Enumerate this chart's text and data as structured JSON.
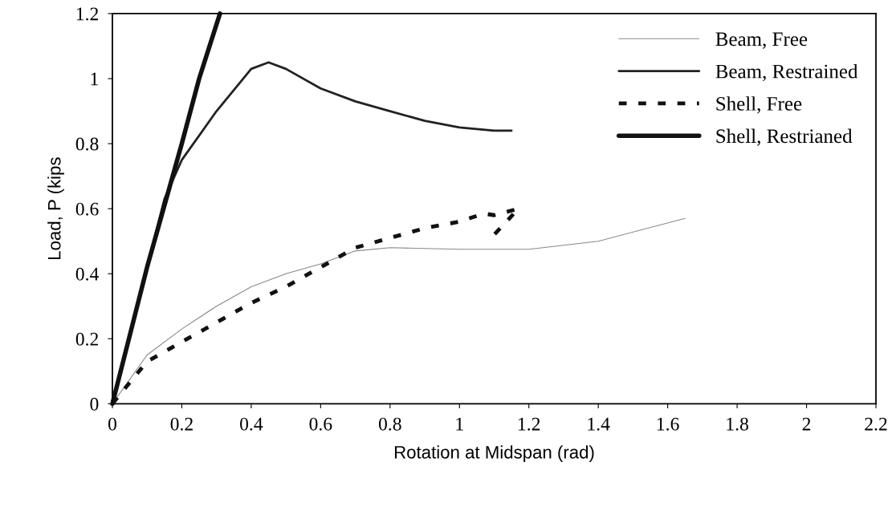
{
  "chart_data": {
    "type": "line",
    "xlabel": "Rotation at Midspan (rad)",
    "ylabel": "Load, P (kips",
    "xlim": [
      0,
      2.2
    ],
    "xticks": [
      0,
      0.2,
      0.4,
      0.6,
      0.8,
      1,
      1.2,
      1.4,
      1.6,
      1.8,
      2,
      2.2
    ],
    "ylim": [
      0,
      1.2
    ],
    "yticks": [
      0,
      0.2,
      0.4,
      0.6,
      0.8,
      1,
      1.2
    ],
    "grid": false,
    "legend": "top right",
    "marker": "none",
    "series": [
      {
        "name": "Beam, Free",
        "color": "#888888",
        "line_style": "solid",
        "x": [
          0,
          0.1,
          0.2,
          0.3,
          0.4,
          0.5,
          0.6,
          0.7,
          0.8,
          1.0,
          1.2,
          1.4,
          1.65
        ],
        "values": [
          0,
          0.15,
          0.23,
          0.3,
          0.36,
          0.4,
          0.43,
          0.47,
          0.48,
          0.475,
          0.475,
          0.5,
          0.57
        ]
      },
      {
        "name": "Beam, Restrained",
        "color": "#222222",
        "line_style": "solid",
        "x": [
          0,
          0.1,
          0.15,
          0.2,
          0.3,
          0.4,
          0.45,
          0.5,
          0.6,
          0.7,
          0.8,
          0.9,
          1.0,
          1.1,
          1.15
        ],
        "values": [
          0,
          0.42,
          0.63,
          0.75,
          0.9,
          1.03,
          1.05,
          1.03,
          0.97,
          0.93,
          0.9,
          0.87,
          0.85,
          0.84,
          0.84
        ]
      },
      {
        "name": "Shell, Free",
        "color": "#111111",
        "line_style": "dashed",
        "x": [
          0,
          0.1,
          0.2,
          0.3,
          0.4,
          0.5,
          0.6,
          0.7,
          0.8,
          0.9,
          1.0,
          1.07,
          1.1,
          1.17,
          1.1
        ],
        "values": [
          0,
          0.13,
          0.19,
          0.25,
          0.31,
          0.36,
          0.42,
          0.48,
          0.51,
          0.54,
          0.56,
          0.585,
          0.58,
          0.6,
          0.52
        ]
      },
      {
        "name": "Shell, Restrianed",
        "color": "#111111",
        "line_style": "solid",
        "x": [
          0,
          0.1,
          0.2,
          0.25,
          0.31
        ],
        "values": [
          0,
          0.42,
          0.8,
          1.0,
          1.2
        ]
      }
    ]
  }
}
